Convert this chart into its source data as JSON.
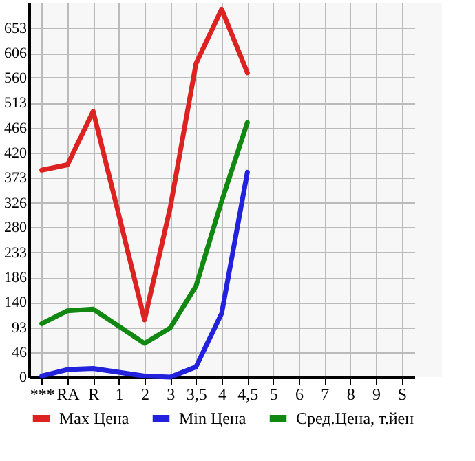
{
  "chart_data": {
    "type": "line",
    "categories": [
      "***",
      "RA",
      "R",
      "1",
      "2",
      "3",
      "3,5",
      "4",
      "4,5",
      "5",
      "6",
      "7",
      "8",
      "9",
      "S"
    ],
    "series": [
      {
        "name": "Max Цена",
        "color": "#dd2222",
        "values": [
          387,
          397,
          497,
          303,
          107,
          317,
          586,
          688,
          569,
          null,
          null,
          null,
          null,
          null,
          null
        ]
      },
      {
        "name": "Min Цена",
        "color": "#2222dd",
        "values": [
          2,
          14,
          16,
          9,
          2,
          0,
          19,
          119,
          383,
          null,
          null,
          null,
          null,
          null,
          null
        ]
      },
      {
        "name": "Сред.Цена, т.йен",
        "color": "#118811",
        "values": [
          100,
          124,
          127,
          95,
          63,
          92,
          170,
          329,
          476,
          null,
          null,
          null,
          null,
          null,
          null
        ]
      }
    ],
    "ylim": [
      0,
      700
    ],
    "yticks": [
      0,
      46,
      93,
      140,
      186,
      233,
      280,
      326,
      373,
      420,
      466,
      513,
      560,
      606,
      653
    ],
    "grid": true,
    "legend": "bottom",
    "marker": "none",
    "line_style": "solid"
  }
}
